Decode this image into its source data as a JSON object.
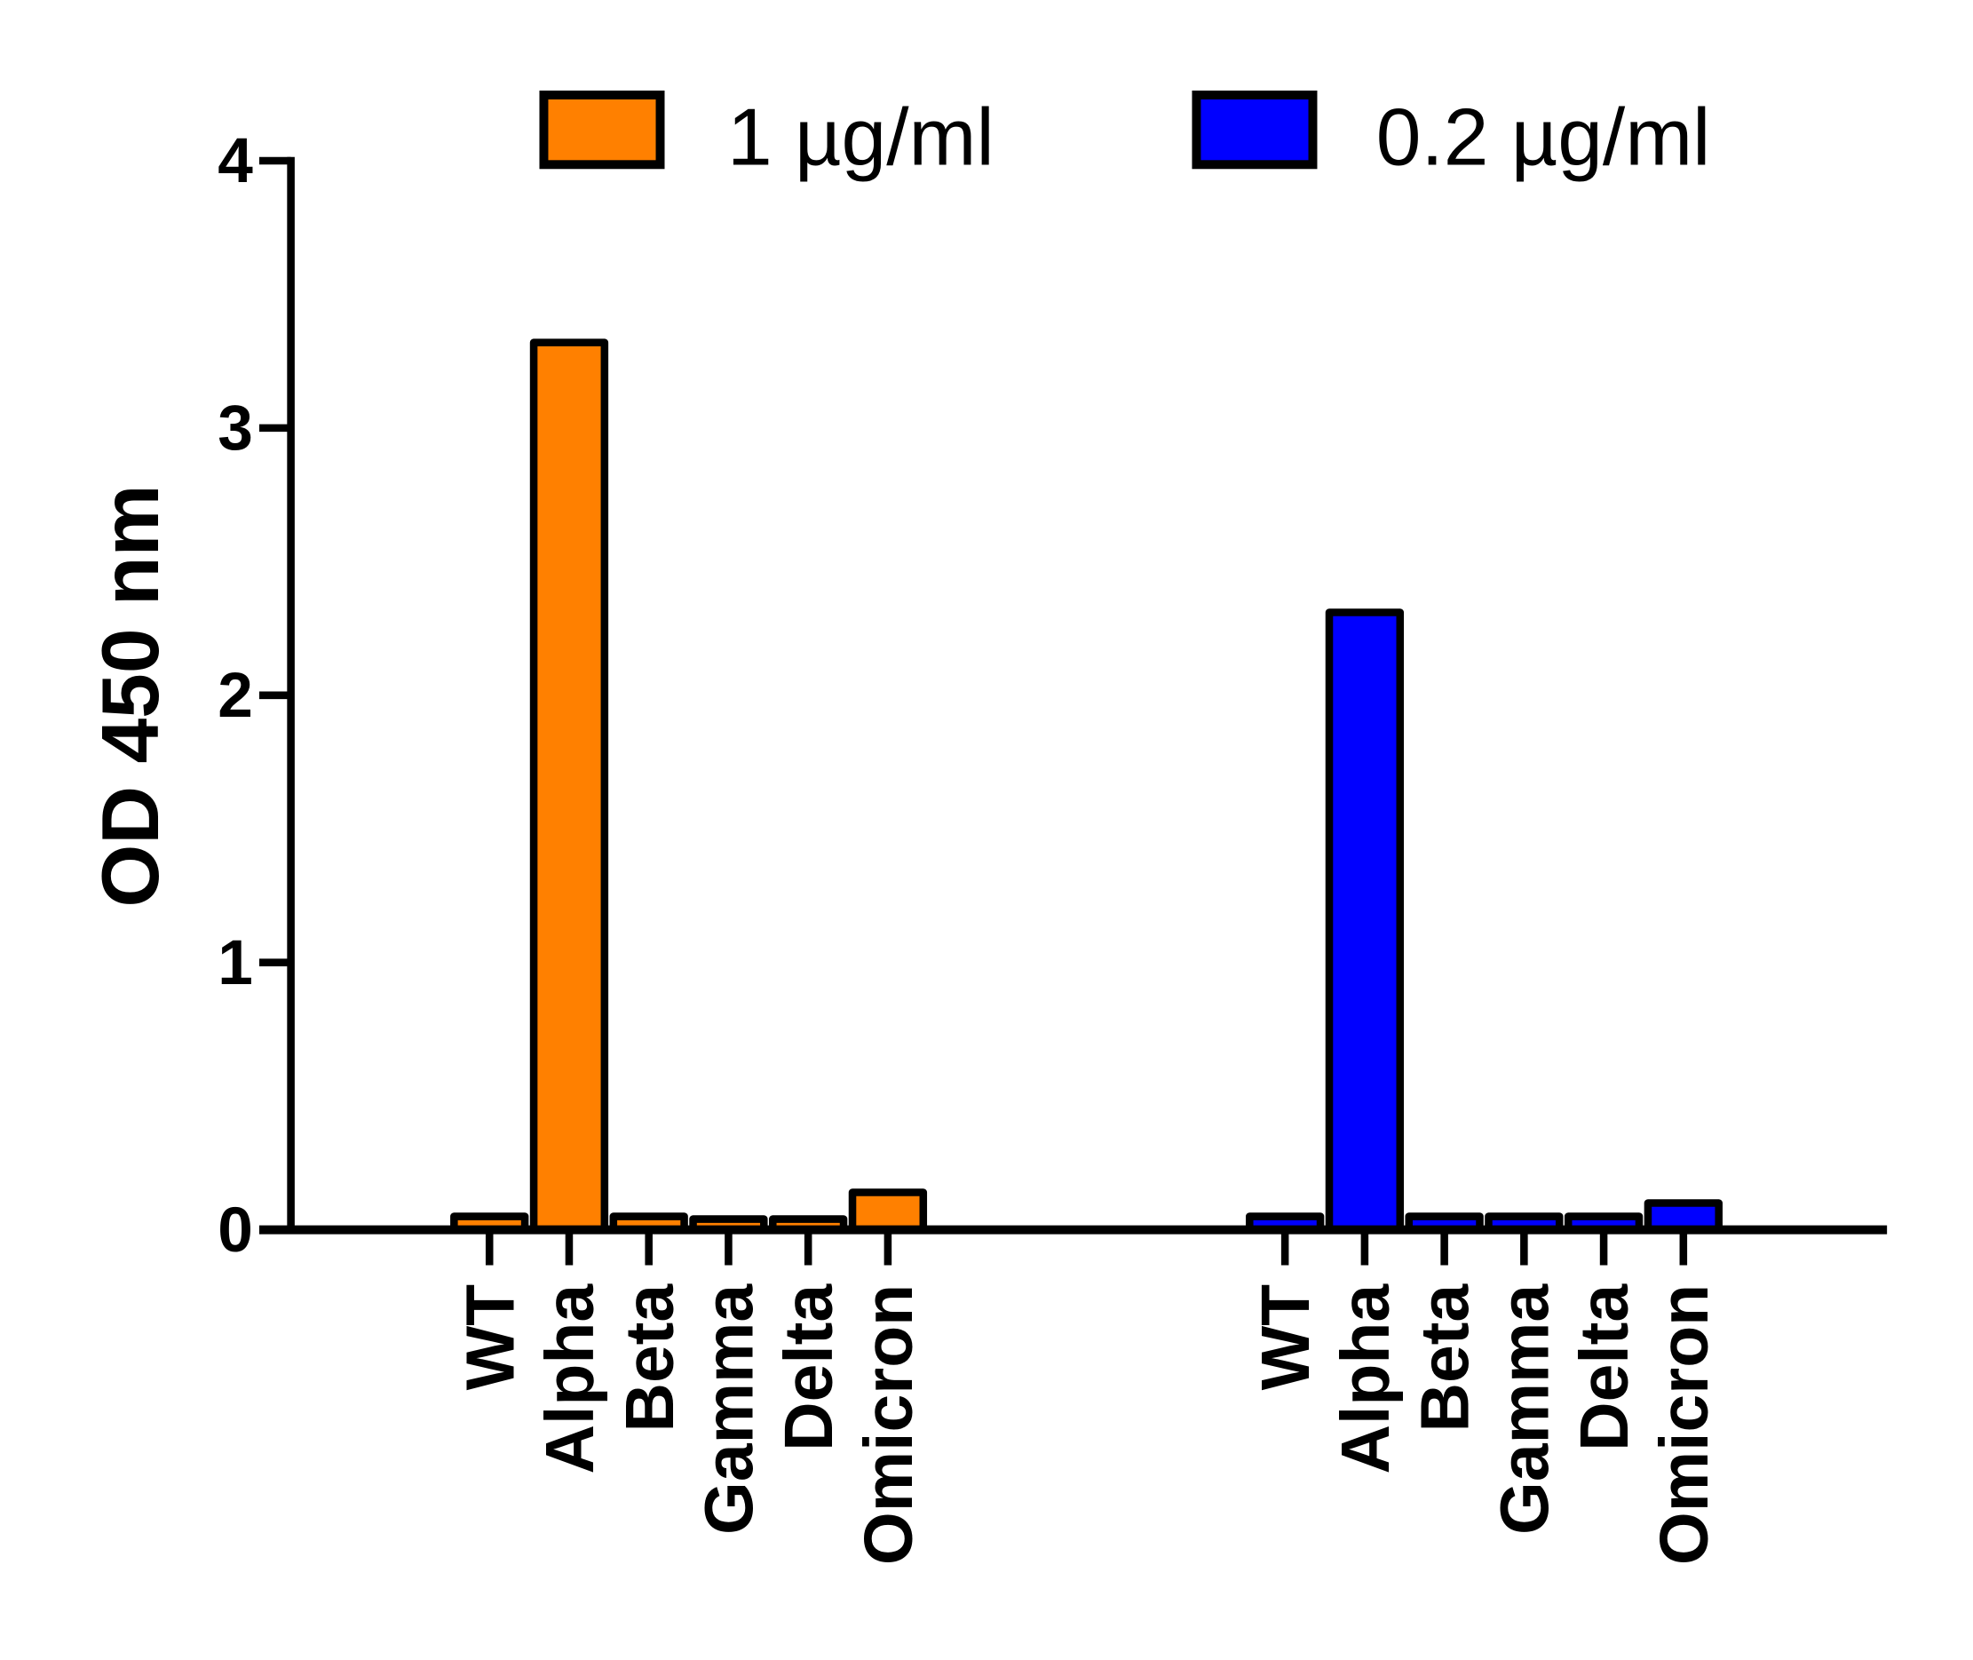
{
  "chart_data": {
    "type": "bar",
    "title": "",
    "xlabel": "",
    "ylabel": "OD 450 nm",
    "ylim": [
      0,
      4
    ],
    "yticks": [
      "0",
      "1",
      "2",
      "3",
      "4"
    ],
    "grid": false,
    "legend_placement": "top",
    "categories": [
      "WT",
      "Alpha",
      "Beta",
      "Gamma",
      "Delta",
      "Omicron"
    ],
    "series": [
      {
        "name": "1 µg/ml",
        "color": "#FF8000",
        "values": [
          0.05,
          3.32,
          0.05,
          0.04,
          0.04,
          0.14
        ]
      },
      {
        "name": "0.2 µg/ml",
        "color": "#0000FF",
        "values": [
          0.05,
          2.31,
          0.05,
          0.05,
          0.05,
          0.1
        ]
      }
    ]
  }
}
